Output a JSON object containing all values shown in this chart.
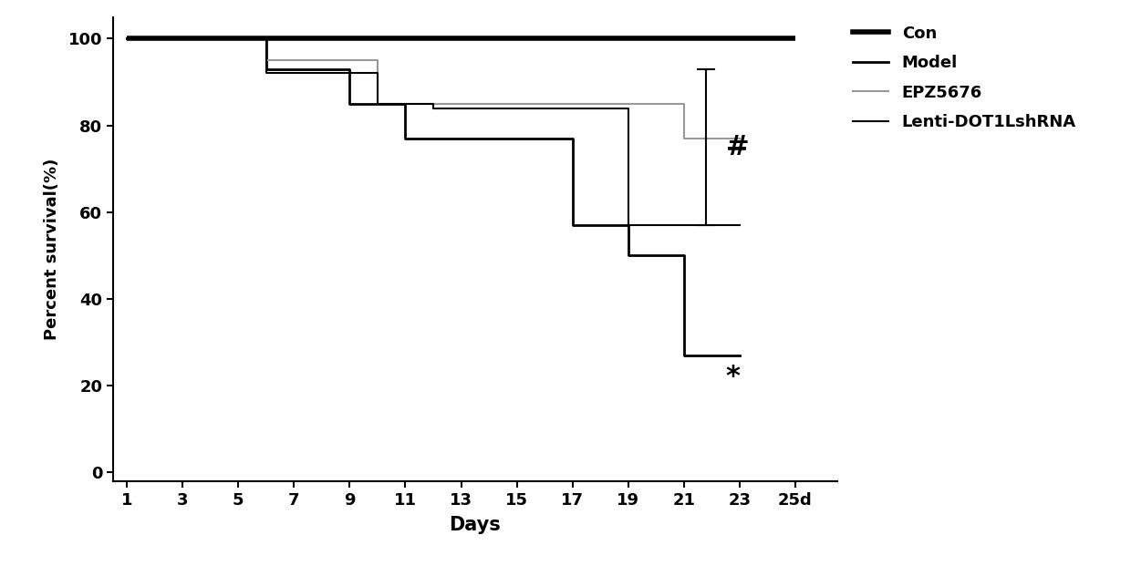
{
  "xlabel": "Days",
  "ylabel": "Percent survival(%)",
  "xlim_min": 0.5,
  "xlim_max": 26.5,
  "ylim_min": -2,
  "ylim_max": 105,
  "xticks": [
    1,
    3,
    5,
    7,
    9,
    11,
    13,
    15,
    17,
    19,
    21,
    23,
    25
  ],
  "xtick_labels": [
    "1",
    "3",
    "5",
    "7",
    "9",
    "11",
    "13",
    "15",
    "17",
    "19",
    "21",
    "23",
    "25d"
  ],
  "yticks": [
    0,
    20,
    40,
    60,
    80,
    100
  ],
  "background_color": "#ffffff",
  "con": {
    "x": [
      1,
      25
    ],
    "y": [
      100,
      100
    ],
    "color": "#000000",
    "linewidth": 4.0
  },
  "model": {
    "x": [
      1,
      6,
      9,
      11,
      13,
      17,
      19,
      21,
      23
    ],
    "y": [
      100,
      93,
      85,
      77,
      77,
      57,
      50,
      27,
      27
    ],
    "color": "#000000",
    "linewidth": 2.0
  },
  "epz5676": {
    "x": [
      1,
      6,
      10,
      12,
      21,
      23
    ],
    "y": [
      100,
      95,
      85,
      85,
      77,
      77
    ],
    "color": "#999999",
    "linewidth": 1.5
  },
  "lenti": {
    "x": [
      1,
      6,
      10,
      12,
      17,
      19,
      23
    ],
    "y": [
      100,
      92,
      85,
      84,
      84,
      57,
      57
    ],
    "color": "#000000",
    "linewidth": 1.5
  },
  "bracket_x": 21.8,
  "bracket_top_y": 93,
  "bracket_bot_y": 57,
  "bracket_tick_half": 0.3,
  "hash_x": 22.5,
  "hash_y": 75,
  "hash_fontsize": 22,
  "star_x": 22.5,
  "star_y": 22,
  "star_fontsize": 22,
  "legend_entries": [
    {
      "label": "Con",
      "color": "#000000",
      "linewidth": 4.0
    },
    {
      "label": "Model",
      "color": "#000000",
      "linewidth": 2.0
    },
    {
      "label": "EPZ5676",
      "color": "#999999",
      "linewidth": 1.5
    },
    {
      "label": "Lenti-DOT1LshRNA",
      "color": "#000000",
      "linewidth": 1.5
    }
  ]
}
